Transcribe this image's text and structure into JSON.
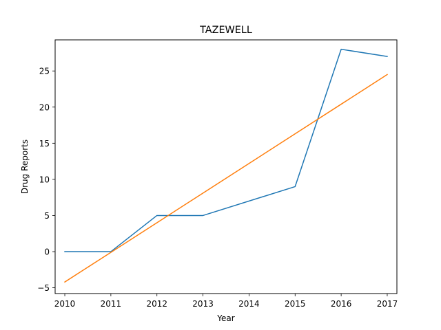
{
  "chart_data": {
    "type": "line",
    "title": "TAZEWELL",
    "xlabel": "Year",
    "ylabel": "Drug Reports",
    "x": [
      2010,
      2011,
      2012,
      2013,
      2015,
      2016,
      2017
    ],
    "xticks": [
      "2010",
      "2011",
      "2012",
      "2013",
      "2014",
      "2015",
      "2016",
      "2017"
    ],
    "xtick_values": [
      2010,
      2011,
      2012,
      2013,
      2014,
      2015,
      2016,
      2017
    ],
    "yticks": [
      "−5",
      "0",
      "5",
      "10",
      "15",
      "20",
      "25"
    ],
    "ytick_values": [
      -5,
      0,
      5,
      10,
      15,
      20,
      25
    ],
    "ylim": [
      -5.8,
      29.3
    ],
    "series": [
      {
        "values": [
          0,
          0,
          5,
          5,
          9,
          28,
          27
        ],
        "color": "#1f77b4"
      },
      {
        "values": [
          -4.2,
          -0.1,
          4.0,
          8.1,
          16.3,
          20.4,
          24.5
        ],
        "color": "#ff7f0e"
      }
    ],
    "grid": false,
    "legend": "none"
  }
}
